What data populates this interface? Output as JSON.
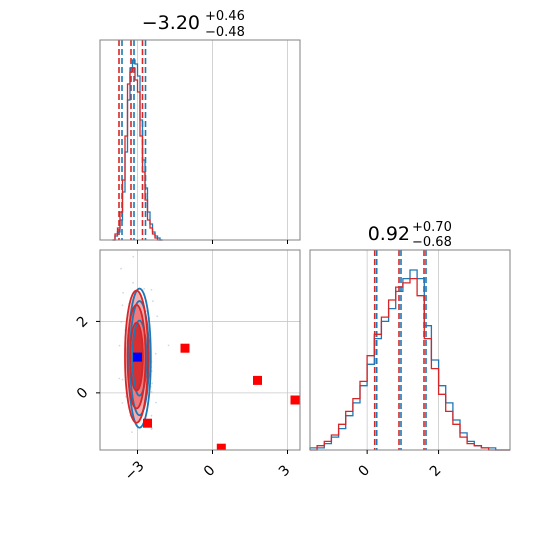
{
  "colors": {
    "blue": "#1f77b4",
    "red": "#d62728",
    "red_fill_light": "#f4a6a8",
    "square_red": "#ff0000",
    "square_blue": "#0000ff",
    "grid": "#c8c8c8",
    "frame": "#808080"
  },
  "chart_data": [
    {
      "panel": "marginal-1",
      "type": "line",
      "title": {
        "median": "−3.20",
        "upper": "+0.46",
        "lower": "−0.48"
      },
      "xlim": [
        -4.5,
        3.5
      ],
      "quantile_lines": [
        -3.68,
        -3.2,
        -2.74
      ],
      "grid_x": [
        -3,
        0,
        3
      ],
      "series": [
        {
          "name": "",
          "color": "blue",
          "bins": [
            -4.0,
            -3.9,
            -3.8,
            -3.7,
            -3.6,
            -3.5,
            -3.4,
            -3.3,
            -3.2,
            -3.1,
            -3.0,
            -2.9,
            -2.8,
            -2.7,
            -2.6,
            -2.5,
            -2.4,
            -2.3,
            -2.2,
            -2.1,
            -2.0
          ],
          "values": [
            0,
            2,
            4,
            10,
            24,
            44,
            70,
            86,
            90,
            88,
            82,
            60,
            40,
            26,
            14,
            8,
            4,
            2,
            1,
            0
          ]
        },
        {
          "name": "",
          "color": "red",
          "bins": [
            -4.0,
            -3.9,
            -3.8,
            -3.7,
            -3.6,
            -3.5,
            -3.4,
            -3.3,
            -3.2,
            -3.1,
            -3.0,
            -2.9,
            -2.8,
            -2.7,
            -2.6,
            -2.5,
            -2.4,
            -2.3,
            -2.2,
            -2.1,
            -2.0
          ],
          "values": [
            0,
            3,
            6,
            14,
            30,
            52,
            78,
            84,
            86,
            80,
            74,
            52,
            34,
            20,
            10,
            6,
            3,
            1,
            0,
            0
          ]
        }
      ]
    },
    {
      "panel": "joint",
      "type": "scatter",
      "xlim": [
        -4.5,
        3.5
      ],
      "ylim": [
        -1.6,
        4.0
      ],
      "x_ticks": [
        "−3",
        "0",
        "3"
      ],
      "y_ticks": [
        "0",
        "2"
      ],
      "center": {
        "x": -3.0,
        "y": 1.0
      },
      "contours": [
        {
          "name": "",
          "color": "blue",
          "rx": 0.45,
          "ry": 1.95
        },
        {
          "name": "",
          "color": "blue",
          "rx": 0.38,
          "ry": 1.6
        },
        {
          "name": "",
          "color": "blue",
          "rx": 0.28,
          "ry": 1.05
        },
        {
          "name": "",
          "color": "red",
          "rx": 0.46,
          "ry": 1.85
        },
        {
          "name": "",
          "color": "red",
          "rx": 0.36,
          "ry": 1.45
        },
        {
          "name": "",
          "color": "red",
          "rx": 0.25,
          "ry": 0.95
        }
      ],
      "points": [
        {
          "x": -3.0,
          "y": 1.0,
          "color": "square_blue"
        },
        {
          "x": -1.1,
          "y": 1.25,
          "color": "square_red"
        },
        {
          "x": -2.6,
          "y": -0.85,
          "color": "square_red"
        },
        {
          "x": 1.8,
          "y": 0.35,
          "color": "square_red"
        },
        {
          "x": 3.3,
          "y": -0.2,
          "color": "square_red"
        },
        {
          "x": 0.35,
          "y": -1.55,
          "color": "square_red"
        }
      ]
    },
    {
      "panel": "marginal-2",
      "type": "line",
      "title": {
        "median": "0.92",
        "upper": "+0.70",
        "lower": "−0.68"
      },
      "xlim": [
        -1.6,
        4.0
      ],
      "quantile_lines": [
        0.24,
        0.92,
        1.62
      ],
      "grid_x": [
        0,
        2
      ],
      "x_ticks": [
        "0",
        "2"
      ],
      "series": [
        {
          "name": "",
          "color": "blue",
          "bins": [
            -1.6,
            -1.4,
            -1.2,
            -1.0,
            -0.8,
            -0.6,
            -0.4,
            -0.2,
            0.0,
            0.2,
            0.4,
            0.6,
            0.8,
            1.0,
            1.2,
            1.4,
            1.6,
            1.8,
            2.0,
            2.2,
            2.4,
            2.6,
            2.8,
            3.0,
            3.2,
            3.4,
            3.6,
            3.8,
            4.0
          ],
          "values": [
            1,
            1,
            3,
            6,
            10,
            16,
            22,
            30,
            40,
            52,
            60,
            66,
            74,
            80,
            84,
            80,
            58,
            42,
            30,
            22,
            14,
            8,
            4,
            2,
            1,
            1,
            0,
            0
          ]
        },
        {
          "name": "",
          "color": "red",
          "bins": [
            -1.6,
            -1.4,
            -1.2,
            -1.0,
            -0.8,
            -0.6,
            -0.4,
            -0.2,
            0.0,
            0.2,
            0.4,
            0.6,
            0.8,
            1.0,
            1.2,
            1.4,
            1.6,
            1.8,
            2.0,
            2.2,
            2.4,
            2.6,
            2.8,
            3.0,
            3.2,
            3.4,
            3.6,
            3.8,
            4.0
          ],
          "values": [
            0,
            2,
            4,
            7,
            12,
            18,
            24,
            32,
            44,
            54,
            62,
            70,
            76,
            78,
            80,
            72,
            52,
            38,
            26,
            18,
            12,
            6,
            3,
            2,
            1,
            0,
            0,
            0
          ]
        }
      ]
    }
  ]
}
